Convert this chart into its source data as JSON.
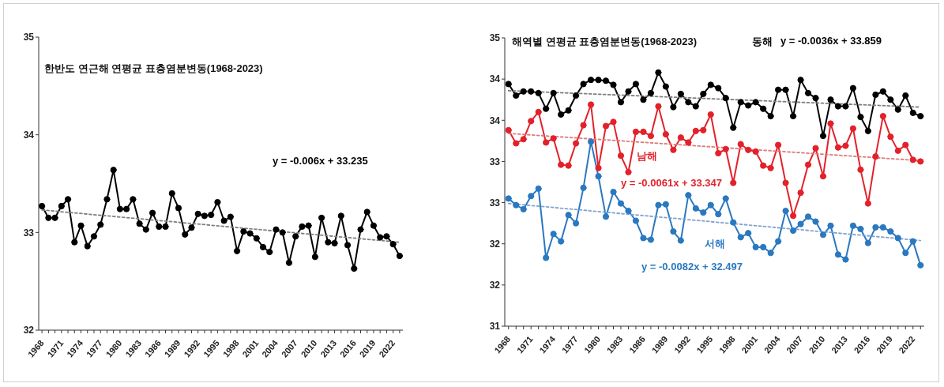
{
  "chart_data": [
    {
      "type": "line",
      "title": "한반도 연근해 연평균 표층염분변동(1968-2023)",
      "marker": "circle",
      "line_style": "solid",
      "x": [
        1968,
        1969,
        1970,
        1971,
        1972,
        1973,
        1974,
        1975,
        1976,
        1977,
        1978,
        1979,
        1980,
        1981,
        1982,
        1983,
        1984,
        1985,
        1986,
        1987,
        1988,
        1989,
        1990,
        1991,
        1992,
        1993,
        1994,
        1995,
        1996,
        1997,
        1998,
        1999,
        2000,
        2001,
        2002,
        2003,
        2004,
        2005,
        2006,
        2007,
        2008,
        2009,
        2010,
        2011,
        2012,
        2013,
        2014,
        2015,
        2016,
        2017,
        2018,
        2019,
        2020,
        2021,
        2022,
        2023
      ],
      "xlim": [
        1967.5,
        2023.5
      ],
      "xticks": [
        1968,
        {
          "value": 1969,
          "label": null
        },
        {
          "value": 1970,
          "label": null
        },
        1971,
        {
          "value": 1972,
          "label": null
        },
        {
          "value": 1973,
          "label": null
        },
        1974,
        {
          "value": 1975,
          "label": null
        },
        {
          "value": 1976,
          "label": null
        },
        1977,
        {
          "value": 1978,
          "label": null
        },
        {
          "value": 1979,
          "label": null
        },
        1980,
        {
          "value": 1981,
          "label": null
        },
        {
          "value": 1982,
          "label": null
        },
        1983,
        {
          "value": 1984,
          "label": null
        },
        {
          "value": 1985,
          "label": null
        },
        1986,
        {
          "value": 1987,
          "label": null
        },
        {
          "value": 1988,
          "label": null
        },
        1989,
        {
          "value": 1990,
          "label": null
        },
        {
          "value": 1991,
          "label": null
        },
        1992,
        {
          "value": 1993,
          "label": null
        },
        {
          "value": 1994,
          "label": null
        },
        1995,
        {
          "value": 1996,
          "label": null
        },
        {
          "value": 1997,
          "label": null
        },
        1998,
        {
          "value": 1999,
          "label": null
        },
        {
          "value": 2000,
          "label": null
        },
        2001,
        {
          "value": 2002,
          "label": null
        },
        {
          "value": 2003,
          "label": null
        },
        2004,
        {
          "value": 2005,
          "label": null
        },
        {
          "value": 2006,
          "label": null
        },
        2007,
        {
          "value": 2008,
          "label": null
        },
        {
          "value": 2009,
          "label": null
        },
        2010,
        {
          "value": 2011,
          "label": null
        },
        {
          "value": 2012,
          "label": null
        },
        2013,
        {
          "value": 2014,
          "label": null
        },
        {
          "value": 2015,
          "label": null
        },
        2016,
        {
          "value": 2017,
          "label": null
        },
        {
          "value": 2018,
          "label": null
        },
        2019,
        {
          "value": 2020,
          "label": null
        },
        {
          "value": 2021,
          "label": null
        },
        2022,
        {
          "value": 2023,
          "label": null
        }
      ],
      "ylim": [
        32,
        35
      ],
      "yticks": [
        32,
        33,
        34,
        35
      ],
      "series": [
        {
          "color": "#000000",
          "values": [
            33.27,
            33.15,
            33.15,
            33.27,
            33.34,
            32.9,
            33.07,
            32.86,
            32.96,
            33.08,
            33.34,
            33.64,
            33.24,
            33.24,
            33.34,
            33.09,
            33.03,
            33.2,
            33.06,
            33.06,
            33.4,
            33.25,
            32.98,
            33.05,
            33.19,
            33.17,
            33.18,
            33.31,
            33.12,
            33.16,
            32.81,
            33.01,
            32.99,
            32.94,
            32.85,
            32.8,
            33.03,
            33.0,
            32.69,
            32.96,
            33.06,
            33.07,
            32.75,
            33.15,
            32.9,
            32.89,
            33.17,
            32.87,
            32.63,
            33.03,
            33.21,
            33.07,
            32.95,
            32.96,
            32.88,
            32.76
          ]
        },
        {
          "type": "line",
          "values": [
            33.23,
            null,
            null,
            null,
            null,
            null,
            null,
            null,
            null,
            null,
            null,
            null,
            null,
            null,
            null,
            null,
            null,
            null,
            null,
            null,
            null,
            null,
            null,
            null,
            null,
            null,
            null,
            null,
            null,
            null,
            null,
            null,
            null,
            null,
            null,
            null,
            null,
            null,
            null,
            null,
            null,
            null,
            null,
            null,
            null,
            null,
            null,
            null,
            null,
            null,
            null,
            null,
            null,
            null,
            null,
            32.9
          ],
          "color": "#808080",
          "marker": "none",
          "line_style": "dotted"
        }
      ],
      "annotations": [
        "y = -0.006x + 33.235"
      ]
    },
    {
      "type": "line",
      "title": "해역별 연평균 표층염분변동(1968-2023)",
      "marker": "circle",
      "line_style": "solid",
      "x": [
        1968,
        1969,
        1970,
        1971,
        1972,
        1973,
        1974,
        1975,
        1976,
        1977,
        1978,
        1979,
        1980,
        1981,
        1982,
        1983,
        1984,
        1985,
        1986,
        1987,
        1988,
        1989,
        1990,
        1991,
        1992,
        1993,
        1994,
        1995,
        1996,
        1997,
        1998,
        1999,
        2000,
        2001,
        2002,
        2003,
        2004,
        2005,
        2006,
        2007,
        2008,
        2009,
        2010,
        2011,
        2012,
        2013,
        2014,
        2015,
        2016,
        2017,
        2018,
        2019,
        2020,
        2021,
        2022,
        2023
      ],
      "xlim": [
        1967.5,
        2023.5
      ],
      "xticks": [
        1968,
        {
          "value": 1969,
          "label": null
        },
        {
          "value": 1970,
          "label": null
        },
        1971,
        {
          "value": 1972,
          "label": null
        },
        {
          "value": 1973,
          "label": null
        },
        1974,
        {
          "value": 1975,
          "label": null
        },
        {
          "value": 1976,
          "label": null
        },
        1977,
        {
          "value": 1978,
          "label": null
        },
        {
          "value": 1979,
          "label": null
        },
        1980,
        {
          "value": 1981,
          "label": null
        },
        {
          "value": 1982,
          "label": null
        },
        1983,
        {
          "value": 1984,
          "label": null
        },
        {
          "value": 1985,
          "label": null
        },
        1986,
        {
          "value": 1987,
          "label": null
        },
        {
          "value": 1988,
          "label": null
        },
        1989,
        {
          "value": 1990,
          "label": null
        },
        {
          "value": 1991,
          "label": null
        },
        1992,
        {
          "value": 1993,
          "label": null
        },
        {
          "value": 1994,
          "label": null
        },
        1995,
        {
          "value": 1996,
          "label": null
        },
        {
          "value": 1997,
          "label": null
        },
        1998,
        {
          "value": 1999,
          "label": null
        },
        {
          "value": 2000,
          "label": null
        },
        2001,
        {
          "value": 2002,
          "label": null
        },
        {
          "value": 2003,
          "label": null
        },
        2004,
        {
          "value": 2005,
          "label": null
        },
        {
          "value": 2006,
          "label": null
        },
        2007,
        {
          "value": 2008,
          "label": null
        },
        {
          "value": 2009,
          "label": null
        },
        2010,
        {
          "value": 2011,
          "label": null
        },
        {
          "value": 2012,
          "label": null
        },
        2013,
        {
          "value": 2014,
          "label": null
        },
        {
          "value": 2015,
          "label": null
        },
        2016,
        {
          "value": 2017,
          "label": null
        },
        {
          "value": 2018,
          "label": null
        },
        2019,
        {
          "value": 2020,
          "label": null
        },
        {
          "value": 2021,
          "label": null
        },
        2022,
        {
          "value": 2023,
          "label": null
        }
      ],
      "ylim": [
        31,
        34.5
      ],
      "yticks": [
        31,
        {
          "value": 31.5,
          "label": "32"
        },
        32,
        {
          "value": 32.5,
          "label": "33"
        },
        33,
        {
          "value": 33.5,
          "label": "34"
        },
        34,
        {
          "value": 34.5,
          "label": "35"
        }
      ],
      "series": [
        {
          "name": "동해",
          "color": "#000000",
          "values": [
            33.94,
            33.8,
            33.85,
            33.85,
            33.83,
            33.64,
            33.83,
            33.57,
            33.62,
            33.8,
            33.94,
            33.99,
            33.99,
            33.98,
            33.93,
            33.72,
            33.85,
            33.94,
            33.75,
            33.83,
            34.08,
            33.91,
            33.66,
            33.82,
            33.72,
            33.67,
            33.82,
            33.93,
            33.89,
            33.77,
            33.41,
            33.72,
            33.68,
            33.72,
            33.64,
            33.55,
            33.87,
            33.87,
            33.55,
            33.99,
            33.83,
            33.77,
            33.31,
            33.75,
            33.67,
            33.67,
            33.89,
            33.54,
            33.37,
            33.81,
            33.85,
            33.75,
            33.63,
            33.8,
            33.59,
            33.55
          ]
        },
        {
          "name": "남해",
          "color": "#e3212b",
          "values": [
            33.38,
            33.22,
            33.27,
            33.49,
            33.6,
            33.23,
            33.28,
            32.96,
            32.95,
            33.22,
            33.44,
            33.69,
            32.92,
            33.43,
            33.48,
            33.07,
            32.87,
            33.36,
            33.36,
            33.31,
            33.67,
            33.33,
            33.14,
            33.29,
            33.23,
            33.37,
            33.38,
            33.57,
            33.1,
            33.15,
            32.74,
            33.21,
            33.14,
            33.12,
            32.95,
            32.92,
            33.2,
            32.74,
            32.34,
            32.62,
            32.96,
            33.16,
            32.82,
            33.46,
            33.17,
            33.19,
            33.4,
            32.9,
            32.49,
            33.06,
            33.55,
            33.3,
            33.13,
            33.2,
            33.02,
            33.0
          ]
        },
        {
          "name": "서해",
          "color": "#2a78c0",
          "values": [
            32.55,
            32.47,
            32.42,
            32.58,
            32.67,
            31.83,
            32.12,
            32.03,
            32.35,
            32.25,
            32.68,
            33.24,
            32.82,
            32.33,
            32.63,
            32.49,
            32.4,
            32.28,
            32.07,
            32.05,
            32.47,
            32.48,
            32.15,
            32.04,
            32.59,
            32.43,
            32.38,
            32.47,
            32.36,
            32.55,
            32.26,
            32.08,
            32.13,
            31.96,
            31.96,
            31.89,
            32.03,
            32.4,
            32.16,
            32.24,
            32.33,
            32.27,
            32.11,
            32.22,
            31.87,
            31.81,
            32.22,
            32.18,
            32.01,
            32.2,
            32.2,
            32.15,
            32.07,
            31.89,
            32.03,
            31.74
          ]
        },
        {
          "type": "line",
          "values": [
            33.86,
            null,
            null,
            null,
            null,
            null,
            null,
            null,
            null,
            null,
            null,
            null,
            null,
            null,
            null,
            null,
            null,
            null,
            null,
            null,
            null,
            null,
            null,
            null,
            null,
            null,
            null,
            null,
            null,
            null,
            null,
            null,
            null,
            null,
            null,
            null,
            null,
            null,
            null,
            null,
            null,
            null,
            null,
            null,
            null,
            null,
            null,
            null,
            null,
            null,
            null,
            null,
            null,
            null,
            null,
            33.66
          ],
          "color": "#808080",
          "marker": "none",
          "line_style": "dotted"
        },
        {
          "type": "line",
          "values": [
            33.34,
            null,
            null,
            null,
            null,
            null,
            null,
            null,
            null,
            null,
            null,
            null,
            null,
            null,
            null,
            null,
            null,
            null,
            null,
            null,
            null,
            null,
            null,
            null,
            null,
            null,
            null,
            null,
            null,
            null,
            null,
            null,
            null,
            null,
            null,
            null,
            null,
            null,
            null,
            null,
            null,
            null,
            null,
            null,
            null,
            null,
            null,
            null,
            null,
            null,
            null,
            null,
            null,
            null,
            null,
            33.01
          ],
          "color": "#e07a7a",
          "marker": "none",
          "line_style": "dotted"
        },
        {
          "type": "line",
          "values": [
            32.49,
            null,
            null,
            null,
            null,
            null,
            null,
            null,
            null,
            null,
            null,
            null,
            null,
            null,
            null,
            null,
            null,
            null,
            null,
            null,
            null,
            null,
            null,
            null,
            null,
            null,
            null,
            null,
            null,
            null,
            null,
            null,
            null,
            null,
            null,
            null,
            null,
            null,
            null,
            null,
            null,
            null,
            null,
            null,
            null,
            null,
            null,
            null,
            null,
            null,
            null,
            null,
            null,
            null,
            null,
            32.04
          ],
          "color": "#7fa3d1",
          "marker": "none",
          "line_style": "dotted"
        }
      ],
      "annotations": [
        "y = -0.0036x + 33.859",
        "y = -0.0061x + 33.347",
        "y = -0.0082x + 32.497"
      ]
    }
  ]
}
